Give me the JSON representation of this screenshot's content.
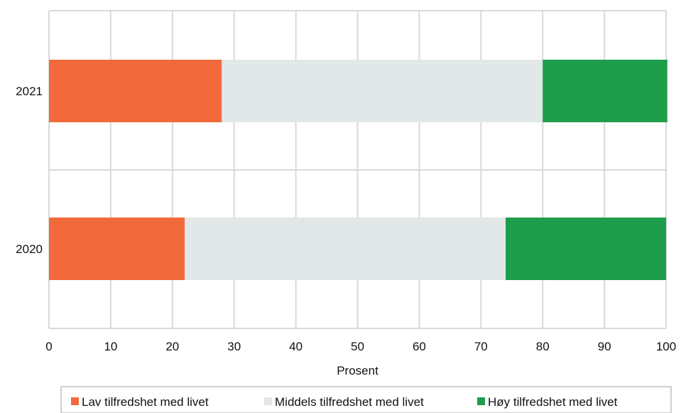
{
  "chart_data": {
    "type": "bar",
    "orientation": "horizontal",
    "stacked": true,
    "categories": [
      "2021",
      "2020"
    ],
    "series": [
      {
        "name": "Lav tilfredshet med livet",
        "color": "#f26a3b",
        "values": [
          28,
          22
        ]
      },
      {
        "name": "Middels tilfredshet med livet",
        "color": "#e2e7e7",
        "values": [
          52,
          52
        ]
      },
      {
        "name": "Høy tilfredshet med livet",
        "color": "#1e9e4a",
        "values": [
          20.2,
          26
        ]
      }
    ],
    "xlabel": "Prosent",
    "ylabel": "",
    "xlim": [
      0,
      100
    ],
    "xticks": [
      "0",
      "10",
      "20",
      "30",
      "40",
      "50",
      "60",
      "70",
      "80",
      "90",
      "100"
    ],
    "grid": true,
    "legend_position": "bottom"
  }
}
